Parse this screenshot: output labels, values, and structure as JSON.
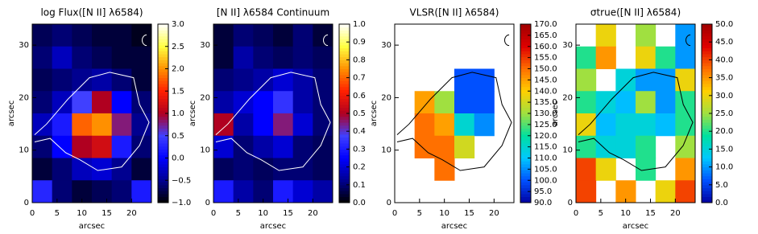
{
  "chart_data": [
    {
      "type": "heatmap",
      "title": "log Flux([N II] λ6584)",
      "xlabel": "arcsec",
      "ylabel": "arcsec",
      "xlim": [
        0,
        24
      ],
      "xticks": [
        0,
        5,
        10,
        15,
        20
      ],
      "ylim": [
        0,
        34
      ],
      "yticks": [
        0,
        10,
        20,
        30
      ],
      "z": [
        [
          -0.7,
          -0.6,
          -0.7,
          -0.8,
          -0.8,
          -0.9
        ],
        [
          -0.6,
          -0.3,
          -0.6,
          -0.7,
          -0.8,
          -0.8
        ],
        [
          -0.7,
          -0.6,
          -0.5,
          -0.4,
          -0.6,
          -0.8
        ],
        [
          -0.6,
          -0.3,
          0.5,
          1.0,
          0.0,
          -0.6
        ],
        [
          -0.3,
          0.2,
          1.8,
          2.0,
          0.8,
          -0.5
        ],
        [
          -0.6,
          0.0,
          1.0,
          1.2,
          0.2,
          -0.6
        ],
        [
          -0.8,
          -0.6,
          -0.3,
          -0.2,
          -0.5,
          -0.8
        ],
        [
          0.3,
          -0.6,
          -0.8,
          -0.7,
          -0.6,
          0.2
        ]
      ],
      "clim": [
        -1,
        3
      ],
      "cticks": [
        {
          "value": 3,
          "label": "3.0"
        },
        2.5,
        {
          "value": 2,
          "label": "2.0"
        },
        1.5,
        {
          "value": 1,
          "label": "1.0"
        },
        0.5,
        {
          "value": 0,
          "label": "0.0"
        },
        {
          "value": -0.5,
          "label": "−0.5"
        },
        {
          "value": -1,
          "label": "−1.0"
        }
      ],
      "colors": [
        "#000000",
        "#000090",
        "#0000ff",
        "#4040ff",
        "#b00020",
        "#ff2000",
        "#ff9000",
        "#ffff40",
        "#ffffff"
      ],
      "contour_color": "#ffffff"
    },
    {
      "type": "heatmap",
      "title": "[N II] λ6584 Continuum",
      "xlabel": "arcsec",
      "ylabel": "arcsec",
      "xlim": [
        0,
        24
      ],
      "xticks": [
        0,
        5,
        10,
        15,
        20
      ],
      "ylim": [
        0,
        34
      ],
      "yticks": [
        0,
        10,
        20,
        30
      ],
      "z": [
        [
          0.05,
          0.1,
          0.08,
          0.05,
          0.1,
          0.05
        ],
        [
          0.05,
          0.15,
          0.1,
          0.08,
          0.1,
          0.08
        ],
        [
          0.1,
          0.12,
          0.15,
          0.2,
          0.15,
          0.1
        ],
        [
          0.15,
          0.2,
          0.25,
          0.35,
          0.15,
          0.1
        ],
        [
          0.5,
          0.15,
          0.25,
          0.45,
          0.2,
          0.1
        ],
        [
          0.2,
          0.1,
          0.15,
          0.2,
          0.1,
          0.08
        ],
        [
          0.08,
          0.1,
          0.08,
          0.1,
          0.1,
          0.08
        ],
        [
          0.3,
          0.15,
          0.1,
          0.3,
          0.2,
          0.15
        ]
      ],
      "clim": [
        0,
        1
      ],
      "cticks": [
        {
          "value": 1,
          "label": "1.0"
        },
        0.9,
        0.8,
        0.7,
        0.6,
        0.5,
        0.4,
        0.3,
        0.2,
        0.1,
        {
          "value": 0,
          "label": "0.0"
        }
      ],
      "colors": [
        "#000000",
        "#000090",
        "#0000ff",
        "#4040ff",
        "#b00020",
        "#ff2000",
        "#ff9000",
        "#ffff40",
        "#ffffff"
      ],
      "contour_color": "#ffffff"
    },
    {
      "type": "heatmap",
      "title": "VLSR([N II] λ6584)",
      "xlabel": "arcsec",
      "ylabel": "arcsec",
      "xlim": [
        0,
        24
      ],
      "xticks": [
        0,
        5,
        10,
        15,
        20
      ],
      "ylim": [
        0,
        34
      ],
      "yticks": [
        0,
        10,
        20,
        30
      ],
      "z": [
        [
          null,
          null,
          null,
          null,
          null,
          null
        ],
        [
          null,
          null,
          null,
          null,
          null,
          null
        ],
        [
          null,
          null,
          null,
          100,
          100,
          null
        ],
        [
          null,
          145,
          130,
          100,
          100,
          null
        ],
        [
          null,
          150,
          145,
          115,
          105,
          null
        ],
        [
          null,
          150,
          150,
          135,
          null,
          null
        ],
        [
          null,
          null,
          150,
          null,
          null,
          null
        ],
        [
          null,
          null,
          null,
          null,
          null,
          null
        ]
      ],
      "clim": [
        90,
        170
      ],
      "cticks": [
        {
          "value": 170,
          "label": "170.0"
        },
        {
          "value": 165,
          "label": "165.0"
        },
        {
          "value": 160,
          "label": "160.0"
        },
        {
          "value": 155,
          "label": "155.0"
        },
        {
          "value": 150,
          "label": "150.0"
        },
        {
          "value": 145,
          "label": "145.0"
        },
        {
          "value": 140,
          "label": "140.0"
        },
        {
          "value": 135,
          "label": "135.0"
        },
        {
          "value": 130,
          "label": "130.0"
        },
        {
          "value": 125,
          "label": "125.0"
        },
        {
          "value": 120,
          "label": "120.0"
        },
        {
          "value": 115,
          "label": "115.0"
        },
        {
          "value": 110,
          "label": "110.0"
        },
        {
          "value": 105,
          "label": "105.0"
        },
        {
          "value": 100,
          "label": "100.0"
        },
        {
          "value": 95,
          "label": "95.0"
        },
        {
          "value": 90,
          "label": "90.0"
        }
      ],
      "colors": [
        "#0000a0",
        "#0050ff",
        "#00c8ff",
        "#00e0a0",
        "#a0e040",
        "#ffd000",
        "#ff7000",
        "#e00000",
        "#a00000"
      ],
      "contour_color": "#000000"
    },
    {
      "type": "heatmap",
      "title": "σtrue([N II] λ6584)",
      "xlabel": "arcsec",
      "ylabel": "arcsec",
      "xlim": [
        0,
        24
      ],
      "xticks": [
        0,
        5,
        10,
        15,
        20
      ],
      "ylim": [
        0,
        34
      ],
      "yticks": [
        0,
        10,
        20,
        30
      ],
      "z": [
        [
          null,
          30,
          null,
          25,
          null,
          10
        ],
        [
          20,
          35,
          null,
          30,
          20,
          10
        ],
        [
          25,
          null,
          15,
          10,
          10,
          30
        ],
        [
          20,
          15,
          12,
          25,
          10,
          20
        ],
        [
          30,
          12,
          15,
          15,
          12,
          20
        ],
        [
          20,
          15,
          15,
          20,
          null,
          25
        ],
        [
          40,
          30,
          null,
          20,
          null,
          35
        ],
        [
          40,
          null,
          35,
          null,
          30,
          40
        ]
      ],
      "clim": [
        0,
        50
      ],
      "cticks": [
        {
          "value": 50,
          "label": "50.0"
        },
        {
          "value": 45,
          "label": "45.0"
        },
        {
          "value": 40,
          "label": "40.0"
        },
        {
          "value": 35,
          "label": "35.0"
        },
        {
          "value": 30,
          "label": "30.0"
        },
        {
          "value": 25,
          "label": "25.0"
        },
        {
          "value": 20,
          "label": "20.0"
        },
        {
          "value": 15,
          "label": "15.0"
        },
        {
          "value": 10,
          "label": "10.0"
        },
        {
          "value": 5,
          "label": "5.0"
        },
        {
          "value": 0,
          "label": "0.0"
        }
      ],
      "colors": [
        "#0000a0",
        "#0050ff",
        "#00c8ff",
        "#00e0a0",
        "#a0e040",
        "#ffd000",
        "#ff7000",
        "#e00000",
        "#a00000"
      ],
      "contour_color": "#000000"
    }
  ]
}
